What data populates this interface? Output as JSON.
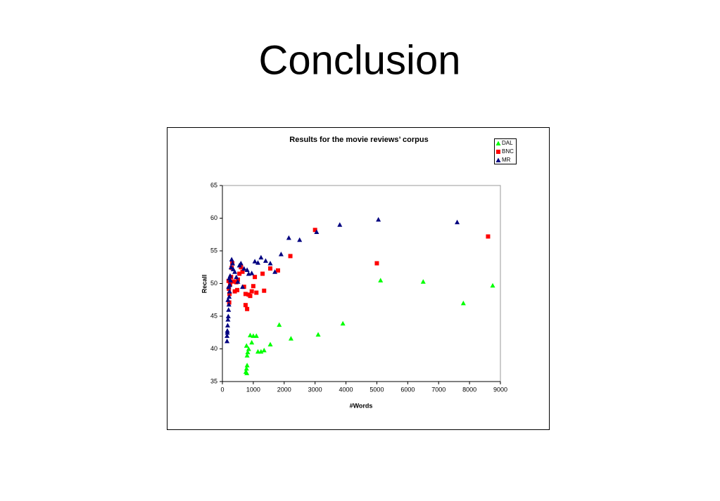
{
  "slide": {
    "title": "Conclusion"
  },
  "chart_data": {
    "type": "scatter",
    "title": "Results for the movie reviews’ corpus",
    "x_label": "#Words",
    "y_label": "Recall",
    "xlim": [
      0,
      9000
    ],
    "xticks": [
      0,
      1000,
      2000,
      3000,
      4000,
      5000,
      6000,
      7000,
      8000,
      9000
    ],
    "ylim": [
      35,
      65
    ],
    "yticks": [
      35,
      40,
      45,
      50,
      55,
      60,
      65
    ],
    "grid": false,
    "legend": "top-right",
    "series": [
      {
        "name": "DAL",
        "color": "#00ff00",
        "marker": "triangle",
        "x": [
          8750,
          7800,
          6500,
          5120,
          3900,
          3100,
          2220,
          1840,
          1550,
          1350,
          1250,
          1150,
          1100,
          1000,
          950,
          900,
          850,
          820,
          800,
          780,
          800,
          780,
          760,
          790
        ],
        "values": [
          49.7,
          47.0,
          50.3,
          50.5,
          43.9,
          42.2,
          41.6,
          43.7,
          40.7,
          39.8,
          39.6,
          39.6,
          42.0,
          42.0,
          41.0,
          42.1,
          40.0,
          39.5,
          39.0,
          40.5,
          37.5,
          37.0,
          36.5,
          36.3
        ]
      },
      {
        "name": "BNC",
        "color": "#ff0000",
        "marker": "square",
        "x": [
          8600,
          5000,
          3000,
          2200,
          1800,
          1550,
          1300,
          1350,
          1100,
          1050,
          1000,
          950,
          900,
          850,
          800,
          750,
          750,
          700,
          650,
          600,
          550,
          500,
          480,
          450,
          400,
          350,
          320,
          300,
          280,
          250,
          230,
          220,
          210,
          200
        ],
        "values": [
          57.2,
          53.1,
          58.2,
          54.2,
          52.0,
          52.3,
          51.5,
          48.9,
          48.6,
          51.0,
          49.6,
          48.8,
          48.1,
          48.3,
          46.1,
          46.7,
          48.4,
          49.5,
          51.8,
          52.5,
          51.5,
          50.6,
          49.0,
          50.2,
          48.8,
          50.3,
          53.1,
          52.4,
          51.0,
          49.9,
          48.4,
          47.1,
          49.2,
          50.4
        ]
      },
      {
        "name": "MR",
        "color": "#000080",
        "marker": "triangle",
        "x": [
          7600,
          5050,
          3800,
          3050,
          2500,
          2150,
          1900,
          1700,
          1550,
          1400,
          1250,
          1150,
          1050,
          950,
          850,
          800,
          700,
          650,
          600,
          550,
          500,
          450,
          400,
          350,
          330,
          300,
          280,
          260,
          240,
          230,
          220,
          210,
          200,
          190,
          180,
          170,
          160,
          150,
          150,
          160,
          180,
          200,
          220,
          250
        ],
        "values": [
          59.4,
          59.8,
          59.0,
          57.9,
          56.7,
          57.0,
          54.5,
          51.8,
          53.1,
          53.5,
          54.0,
          53.2,
          53.4,
          51.6,
          51.5,
          52.1,
          52.3,
          49.5,
          53.1,
          52.8,
          50.3,
          51.0,
          51.8,
          52.2,
          53.1,
          53.7,
          52.5,
          50.5,
          49.8,
          48.8,
          48.0,
          46.8,
          46.0,
          45.0,
          44.5,
          43.6,
          42.8,
          42.0,
          41.2,
          42.5,
          47.5,
          49.5,
          50.8,
          51.2
        ]
      }
    ]
  }
}
